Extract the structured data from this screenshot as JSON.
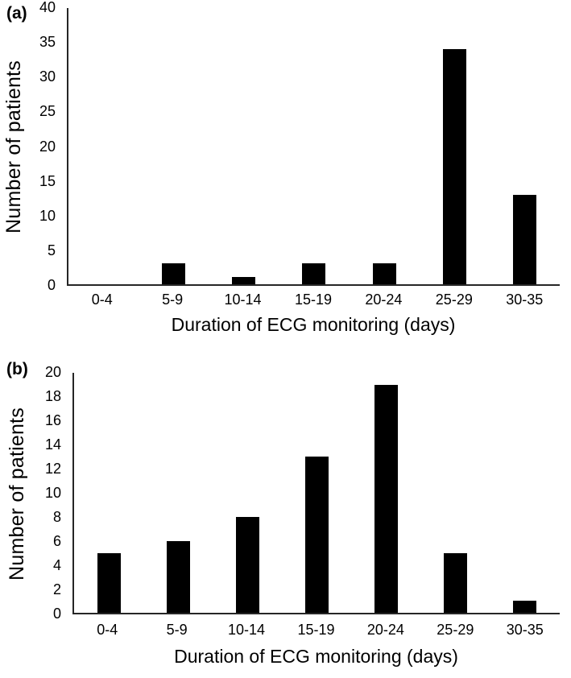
{
  "figure": {
    "background_color": "#ffffff",
    "text_color": "#000000"
  },
  "chart_data": [
    {
      "type": "bar",
      "panel_label": "(a)",
      "categories": [
        "0-4",
        "5-9",
        "10-14",
        "15-19",
        "20-24",
        "25-29",
        "30-35"
      ],
      "values": [
        0,
        3,
        1,
        3,
        3,
        34,
        13
      ],
      "xlabel": "Duration of ECG monitoring (days)",
      "ylabel": "Number of patients",
      "ylim": [
        0,
        40
      ],
      "yticks": [
        0,
        5,
        10,
        15,
        20,
        25,
        30,
        35,
        40
      ],
      "grid": false,
      "legend": "none",
      "bar_color": "#000000",
      "axis_color": "#262626"
    },
    {
      "type": "bar",
      "panel_label": "(b)",
      "categories": [
        "0-4",
        "5-9",
        "10-14",
        "15-19",
        "20-24",
        "25-29",
        "30-35"
      ],
      "values": [
        5,
        6,
        8,
        13,
        19,
        5,
        1
      ],
      "xlabel": "Duration of ECG monitoring (days)",
      "ylabel": "Number of patients",
      "ylim": [
        0,
        20
      ],
      "yticks": [
        0,
        2,
        4,
        6,
        8,
        10,
        12,
        14,
        16,
        18,
        20
      ],
      "grid": false,
      "legend": "none",
      "bar_color": "#000000",
      "axis_color": "#262626"
    }
  ]
}
